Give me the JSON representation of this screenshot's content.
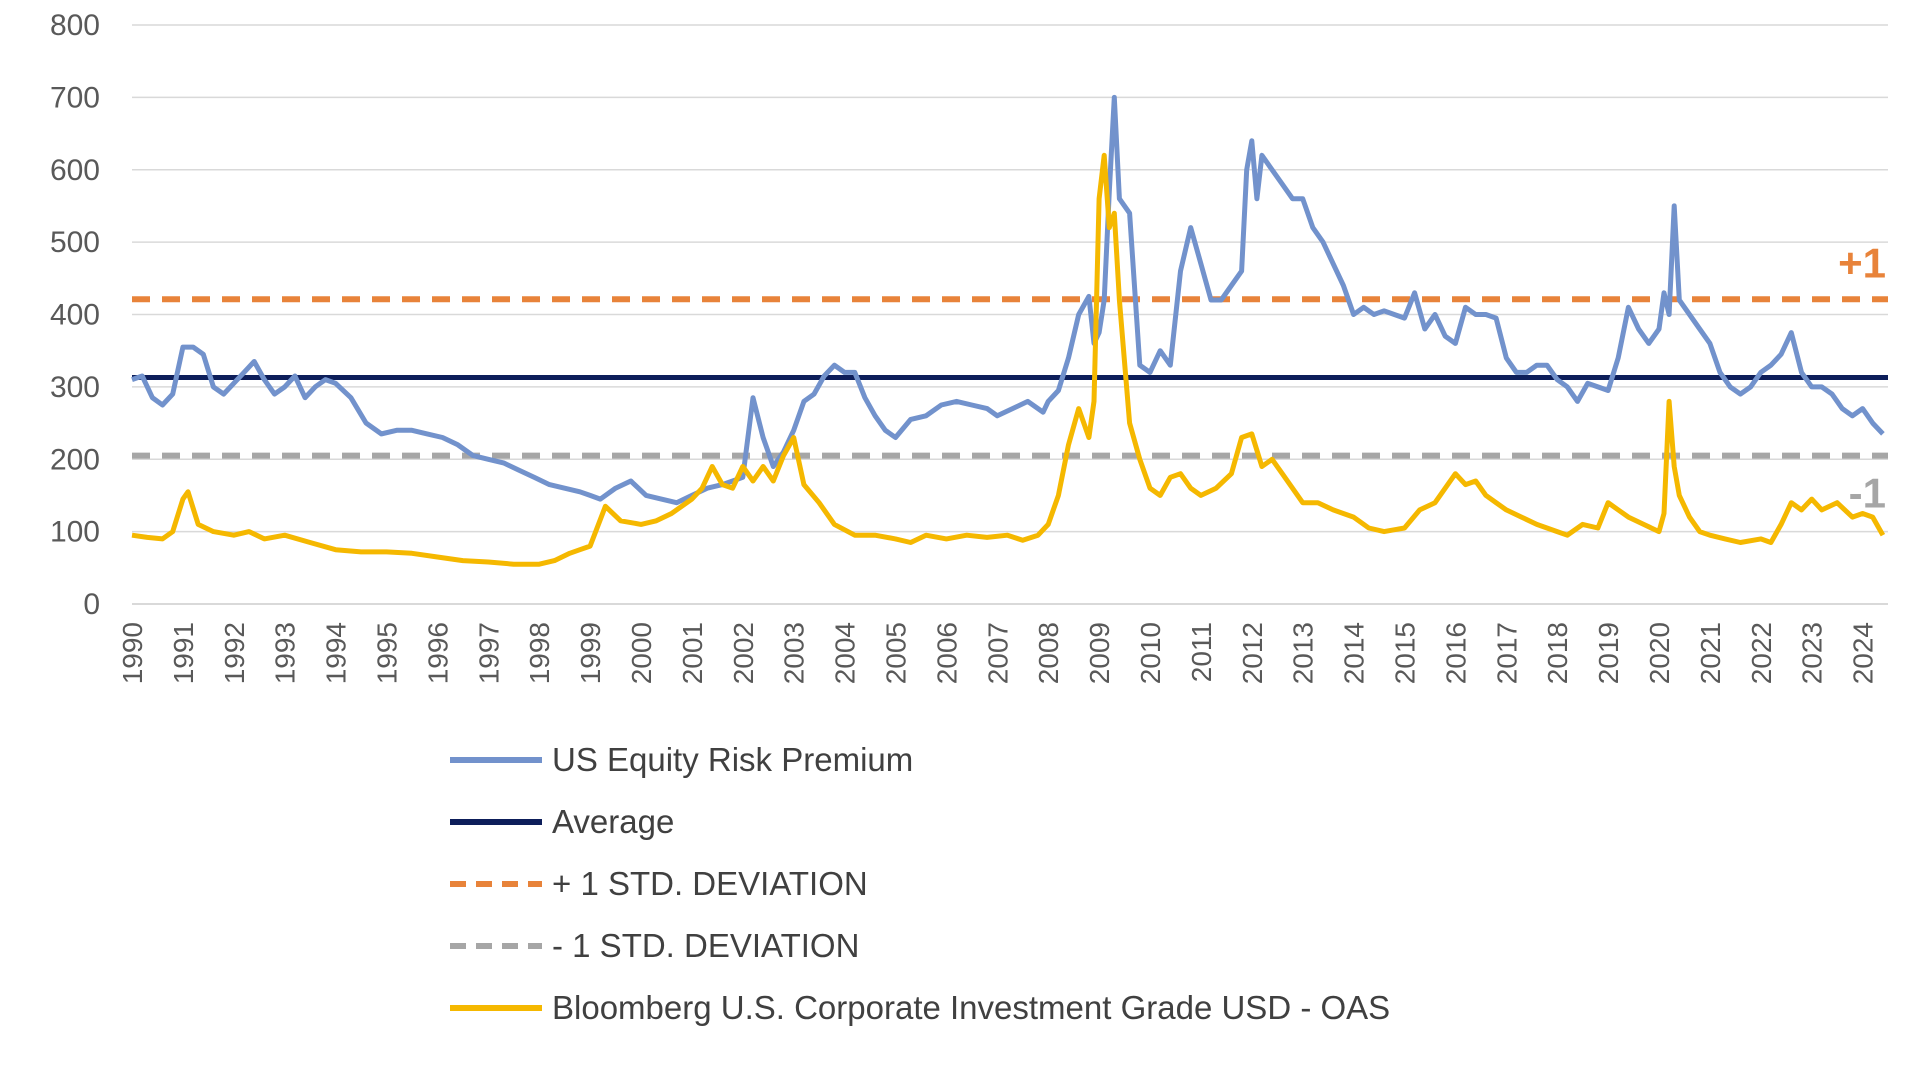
{
  "chart_data": {
    "type": "line",
    "title": "",
    "xlabel": "",
    "ylabel": "",
    "ylim": [
      0,
      800
    ],
    "yticks": [
      0,
      100,
      200,
      300,
      400,
      500,
      600,
      700,
      800
    ],
    "xlim": [
      1990,
      2024.5
    ],
    "xticks": [
      "1990",
      "1991",
      "1992",
      "1993",
      "1994",
      "1995",
      "1996",
      "1997",
      "1998",
      "1999",
      "2000",
      "2001",
      "2002",
      "2003",
      "2004",
      "2005",
      "2006",
      "2007",
      "2008",
      "2009",
      "2010",
      "2011",
      "2012",
      "2013",
      "2014",
      "2015",
      "2016",
      "2017",
      "2018",
      "2019",
      "2020",
      "2021",
      "2022",
      "2023",
      "2024"
    ],
    "grid": true,
    "band_labels": {
      "upper": "+1",
      "lower": "-1"
    },
    "colors": {
      "erp": "#7292CC",
      "average": "#0D1E5A",
      "plus_sd": "#E8833A",
      "minus_sd": "#A6A6A6",
      "oas": "#F5B800",
      "grid": "#D9D9D9"
    },
    "series": [
      {
        "name": "US Equity Risk Premium",
        "style": "solid",
        "x": [
          1990.0,
          1990.2,
          1990.4,
          1990.6,
          1990.8,
          1991.0,
          1991.2,
          1991.4,
          1991.6,
          1991.8,
          1992.0,
          1992.2,
          1992.4,
          1992.6,
          1992.8,
          1993.0,
          1993.2,
          1993.4,
          1993.6,
          1993.8,
          1994.0,
          1994.3,
          1994.6,
          1994.9,
          1995.2,
          1995.5,
          1995.8,
          1996.1,
          1996.4,
          1996.7,
          1997.0,
          1997.3,
          1997.6,
          1997.9,
          1998.2,
          1998.5,
          1998.8,
          1999.0,
          1999.2,
          1999.5,
          1999.8,
          2000.1,
          2000.4,
          2000.7,
          2001.0,
          2001.3,
          2001.6,
          2001.8,
          2002.0,
          2002.2,
          2002.4,
          2002.6,
          2002.8,
          2003.0,
          2003.2,
          2003.4,
          2003.6,
          2003.8,
          2004.0,
          2004.2,
          2004.4,
          2004.6,
          2004.8,
          2005.0,
          2005.3,
          2005.6,
          2005.9,
          2006.2,
          2006.5,
          2006.8,
          2007.0,
          2007.3,
          2007.6,
          2007.9,
          2008.0,
          2008.2,
          2008.4,
          2008.6,
          2008.8,
          2008.9,
          2009.0,
          2009.1,
          2009.2,
          2009.3,
          2009.4,
          2009.6,
          2009.8,
          2010.0,
          2010.2,
          2010.4,
          2010.6,
          2010.8,
          2011.0,
          2011.2,
          2011.4,
          2011.6,
          2011.8,
          2011.9,
          2012.0,
          2012.1,
          2012.2,
          2012.4,
          2012.6,
          2012.8,
          2013.0,
          2013.2,
          2013.4,
          2013.6,
          2013.8,
          2014.0,
          2014.2,
          2014.4,
          2014.6,
          2014.8,
          2015.0,
          2015.2,
          2015.4,
          2015.6,
          2015.8,
          2016.0,
          2016.2,
          2016.4,
          2016.6,
          2016.8,
          2017.0,
          2017.2,
          2017.4,
          2017.6,
          2017.8,
          2018.0,
          2018.2,
          2018.4,
          2018.6,
          2018.8,
          2019.0,
          2019.2,
          2019.4,
          2019.6,
          2019.8,
          2020.0,
          2020.1,
          2020.2,
          2020.3,
          2020.4,
          2020.6,
          2020.8,
          2021.0,
          2021.2,
          2021.4,
          2021.6,
          2021.8,
          2022.0,
          2022.2,
          2022.4,
          2022.6,
          2022.8,
          2023.0,
          2023.2,
          2023.4,
          2023.6,
          2023.8,
          2024.0,
          2024.2,
          2024.4
        ],
        "values": [
          310,
          315,
          285,
          275,
          290,
          355,
          355,
          345,
          300,
          290,
          305,
          320,
          335,
          310,
          290,
          300,
          315,
          285,
          300,
          310,
          305,
          285,
          250,
          235,
          240,
          240,
          235,
          230,
          220,
          205,
          200,
          195,
          185,
          175,
          165,
          160,
          155,
          150,
          145,
          160,
          170,
          150,
          145,
          140,
          150,
          160,
          165,
          170,
          175,
          285,
          230,
          190,
          210,
          240,
          280,
          290,
          315,
          330,
          320,
          320,
          285,
          260,
          240,
          230,
          255,
          260,
          275,
          280,
          275,
          270,
          260,
          270,
          280,
          265,
          280,
          295,
          340,
          400,
          425,
          360,
          375,
          420,
          570,
          700,
          560,
          540,
          330,
          320,
          350,
          330,
          460,
          520,
          470,
          420,
          420,
          440,
          460,
          600,
          640,
          560,
          620,
          600,
          580,
          560,
          560,
          520,
          500,
          470,
          440,
          400,
          410,
          400,
          405,
          400,
          395,
          430,
          380,
          400,
          370,
          360,
          410,
          400,
          400,
          395,
          340,
          320,
          320,
          330,
          330,
          310,
          300,
          280,
          305,
          300,
          295,
          340,
          410,
          380,
          360,
          380,
          430,
          400,
          550,
          420,
          400,
          380,
          360,
          320,
          300,
          290,
          300,
          320,
          330,
          345,
          375,
          320,
          300,
          300,
          290,
          270,
          260,
          270,
          250,
          235
        ]
      },
      {
        "name": "Average",
        "style": "solid",
        "x": [
          1990,
          2024.5
        ],
        "values": [
          313,
          313
        ]
      },
      {
        "name": "+ 1 STD. DEVIATION",
        "style": "dashed",
        "x": [
          1990,
          2024.5
        ],
        "values": [
          421,
          421
        ]
      },
      {
        "name": "- 1 STD. DEVIATION",
        "style": "dashed",
        "x": [
          1990,
          2024.5
        ],
        "values": [
          205,
          205
        ]
      },
      {
        "name": "Bloomberg U.S. Corporate Investment Grade USD - OAS",
        "style": "solid",
        "x": [
          1990.0,
          1990.3,
          1990.6,
          1990.8,
          1991.0,
          1991.1,
          1991.3,
          1991.6,
          1992.0,
          1992.3,
          1992.6,
          1993.0,
          1993.5,
          1994.0,
          1994.5,
          1995.0,
          1995.5,
          1996.0,
          1996.5,
          1997.0,
          1997.5,
          1998.0,
          1998.3,
          1998.6,
          1998.8,
          1999.0,
          1999.3,
          1999.6,
          2000.0,
          2000.3,
          2000.6,
          2001.0,
          2001.2,
          2001.4,
          2001.6,
          2001.8,
          2002.0,
          2002.2,
          2002.4,
          2002.6,
          2002.8,
          2003.0,
          2003.2,
          2003.5,
          2003.8,
          2004.2,
          2004.6,
          2005.0,
          2005.3,
          2005.6,
          2006.0,
          2006.4,
          2006.8,
          2007.2,
          2007.5,
          2007.8,
          2008.0,
          2008.2,
          2008.4,
          2008.6,
          2008.8,
          2008.9,
          2009.0,
          2009.1,
          2009.2,
          2009.3,
          2009.4,
          2009.6,
          2009.8,
          2010.0,
          2010.2,
          2010.4,
          2010.6,
          2010.8,
          2011.0,
          2011.3,
          2011.6,
          2011.8,
          2012.0,
          2012.2,
          2012.4,
          2012.6,
          2012.8,
          2013.0,
          2013.3,
          2013.6,
          2014.0,
          2014.3,
          2014.6,
          2015.0,
          2015.3,
          2015.6,
          2016.0,
          2016.2,
          2016.4,
          2016.6,
          2016.8,
          2017.0,
          2017.3,
          2017.6,
          2018.0,
          2018.2,
          2018.5,
          2018.8,
          2019.0,
          2019.2,
          2019.4,
          2019.7,
          2020.0,
          2020.1,
          2020.2,
          2020.3,
          2020.4,
          2020.6,
          2020.8,
          2021.0,
          2021.3,
          2021.6,
          2022.0,
          2022.2,
          2022.4,
          2022.6,
          2022.8,
          2023.0,
          2023.2,
          2023.5,
          2023.8,
          2024.0,
          2024.2,
          2024.4
        ],
        "values": [
          95,
          92,
          90,
          100,
          145,
          155,
          110,
          100,
          95,
          100,
          90,
          95,
          85,
          75,
          72,
          72,
          70,
          65,
          60,
          58,
          55,
          55,
          60,
          70,
          75,
          80,
          135,
          115,
          110,
          115,
          125,
          145,
          160,
          190,
          165,
          160,
          190,
          170,
          190,
          170,
          205,
          230,
          165,
          140,
          110,
          95,
          95,
          90,
          85,
          95,
          90,
          95,
          92,
          95,
          88,
          95,
          110,
          150,
          220,
          270,
          230,
          280,
          560,
          620,
          520,
          540,
          420,
          250,
          200,
          160,
          150,
          175,
          180,
          160,
          150,
          160,
          180,
          230,
          235,
          190,
          200,
          180,
          160,
          140,
          140,
          130,
          120,
          105,
          100,
          105,
          130,
          140,
          180,
          165,
          170,
          150,
          140,
          130,
          120,
          110,
          100,
          95,
          110,
          105,
          140,
          130,
          120,
          110,
          100,
          125,
          280,
          190,
          150,
          120,
          100,
          95,
          90,
          85,
          90,
          85,
          110,
          140,
          130,
          145,
          130,
          140,
          120,
          125,
          120,
          95
        ]
      }
    ]
  },
  "legend": {
    "items": [
      {
        "label": "US Equity Risk Premium",
        "color": "#7292CC",
        "style": "solid"
      },
      {
        "label": "Average",
        "color": "#0D1E5A",
        "style": "solid"
      },
      {
        "label": "+ 1 STD. DEVIATION",
        "color": "#E8833A",
        "style": "dashed"
      },
      {
        "label": "- 1 STD. DEVIATION",
        "color": "#A6A6A6",
        "style": "dashed"
      },
      {
        "label": "Bloomberg U.S. Corporate Investment Grade USD - OAS",
        "color": "#F5B800",
        "style": "solid"
      }
    ]
  }
}
